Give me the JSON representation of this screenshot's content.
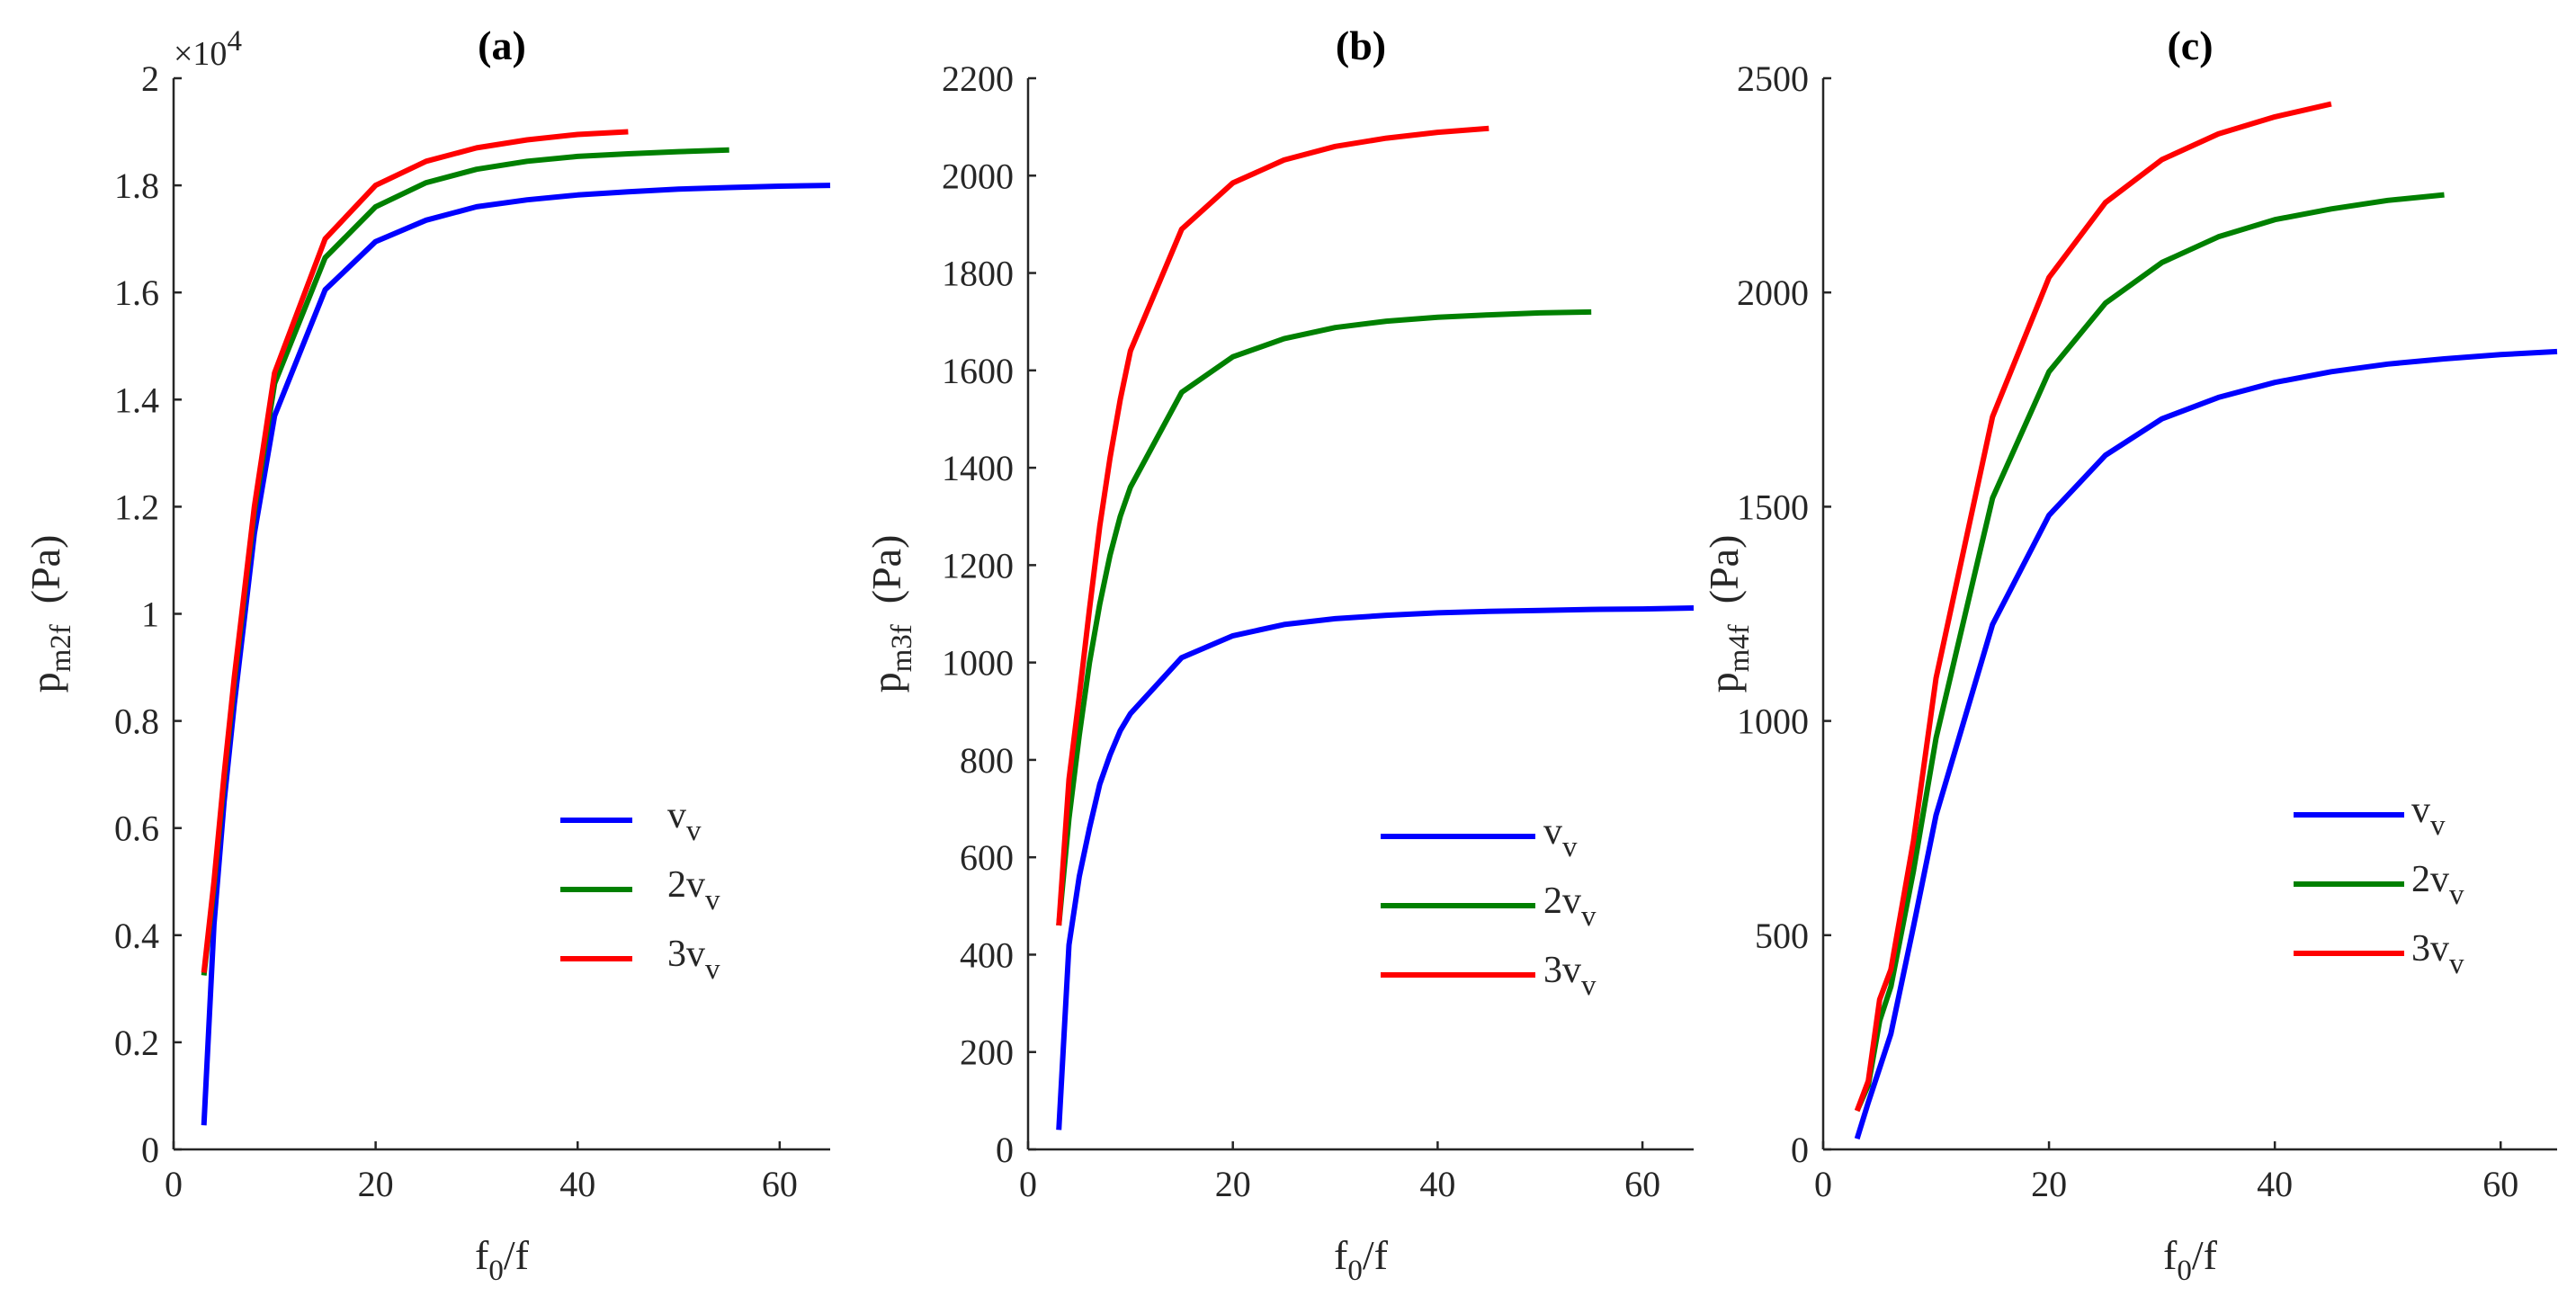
{
  "chart_data": [
    {
      "type": "line",
      "title": "(a)",
      "xlabel": "f0/f",
      "xlabel_main": "f",
      "xlabel_sub": "0",
      "xlabel_tail": "/f",
      "ylabel": "pm2f (Pa)",
      "ylabel_main": "p",
      "ylabel_sub": "m2f",
      "ylabel_unit": "(Pa)",
      "y_exponent_prefix": "×10",
      "y_exponent_power": "4",
      "xlim": [
        0,
        65
      ],
      "ylim": [
        0,
        20000
      ],
      "xticks": [
        0,
        20,
        40,
        60
      ],
      "xtick_labels": [
        "0",
        "20",
        "40",
        "60"
      ],
      "yticks": [
        0,
        2000,
        4000,
        6000,
        8000,
        10000,
        12000,
        14000,
        16000,
        18000,
        20000
      ],
      "ytick_labels": [
        "0",
        "0.2",
        "0.4",
        "0.6",
        "0.8",
        "1",
        "1.2",
        "1.4",
        "1.6",
        "1.8",
        "2"
      ],
      "legend_position": "right-middle",
      "series": [
        {
          "name": "vv",
          "label_main": "v",
          "label_sub": "v",
          "color": "#0000ff",
          "x": [
            3,
            4,
            5,
            6,
            8,
            10,
            15,
            20,
            25,
            30,
            35,
            40,
            45,
            50,
            55,
            60,
            65
          ],
          "y": [
            450,
            4200,
            6500,
            8300,
            11500,
            13700,
            16050,
            16950,
            17350,
            17600,
            17730,
            17820,
            17880,
            17930,
            17960,
            17985,
            18000
          ]
        },
        {
          "name": "2vv",
          "label_main": "2v",
          "label_sub": "v",
          "color": "#008000",
          "x": [
            3,
            4,
            5,
            6,
            8,
            10,
            15,
            20,
            25,
            30,
            35,
            40,
            45,
            50,
            55
          ],
          "y": [
            3250,
            4900,
            6900,
            8700,
            11900,
            14300,
            16650,
            17600,
            18050,
            18300,
            18450,
            18540,
            18590,
            18630,
            18660
          ]
        },
        {
          "name": "3vv",
          "label_main": "3v",
          "label_sub": "v",
          "color": "#ff0000",
          "x": [
            3,
            4,
            5,
            6,
            8,
            10,
            15,
            20,
            25,
            30,
            35,
            40,
            45
          ],
          "y": [
            3300,
            5000,
            7000,
            8800,
            12000,
            14500,
            17000,
            18000,
            18450,
            18700,
            18850,
            18950,
            19000
          ]
        }
      ]
    },
    {
      "type": "line",
      "title": "(b)",
      "xlabel": "f0/f",
      "xlabel_main": "f",
      "xlabel_sub": "0",
      "xlabel_tail": "/f",
      "ylabel": "pm3f (Pa)",
      "ylabel_main": "p",
      "ylabel_sub": "m3f",
      "ylabel_unit": "(Pa)",
      "xlim": [
        0,
        65
      ],
      "ylim": [
        0,
        2200
      ],
      "xticks": [
        0,
        20,
        40,
        60
      ],
      "xtick_labels": [
        "0",
        "20",
        "40",
        "60"
      ],
      "yticks": [
        0,
        200,
        400,
        600,
        800,
        1000,
        1200,
        1400,
        1600,
        1800,
        2000,
        2200
      ],
      "ytick_labels": [
        "0",
        "200",
        "400",
        "600",
        "800",
        "1000",
        "1200",
        "1400",
        "1600",
        "1800",
        "2000",
        "2200"
      ],
      "legend_position": "right-middle",
      "series": [
        {
          "name": "vv",
          "label_main": "v",
          "label_sub": "v",
          "color": "#0000ff",
          "x": [
            3,
            4,
            5,
            6,
            7,
            8,
            9,
            10,
            15,
            20,
            25,
            30,
            35,
            40,
            45,
            50,
            55,
            60,
            65
          ],
          "y": [
            40,
            420,
            560,
            660,
            750,
            810,
            860,
            895,
            1010,
            1055,
            1078,
            1090,
            1097,
            1102,
            1105,
            1107,
            1109,
            1110,
            1112
          ]
        },
        {
          "name": "2vv",
          "label_main": "2v",
          "label_sub": "v",
          "color": "#008000",
          "x": [
            3,
            4,
            5,
            6,
            7,
            8,
            9,
            10,
            15,
            20,
            25,
            30,
            35,
            40,
            45,
            50,
            55
          ],
          "y": [
            460,
            680,
            850,
            1000,
            1120,
            1220,
            1300,
            1360,
            1555,
            1628,
            1665,
            1688,
            1701,
            1709,
            1714,
            1718,
            1720
          ]
        },
        {
          "name": "3vv",
          "label_main": "3v",
          "label_sub": "v",
          "color": "#ff0000",
          "x": [
            3,
            4,
            5,
            6,
            7,
            8,
            9,
            10,
            15,
            20,
            25,
            30,
            35,
            40,
            45
          ],
          "y": [
            460,
            760,
            930,
            1110,
            1280,
            1420,
            1540,
            1640,
            1890,
            1985,
            2032,
            2060,
            2077,
            2089,
            2097
          ]
        }
      ]
    },
    {
      "type": "line",
      "title": "(c)",
      "xlabel": "f0/f",
      "xlabel_main": "f",
      "xlabel_sub": "0",
      "xlabel_tail": "/f",
      "ylabel": "pm4f (Pa)",
      "ylabel_main": "p",
      "ylabel_sub": "m4f",
      "ylabel_unit": "(Pa)",
      "xlim": [
        0,
        65
      ],
      "ylim": [
        0,
        2500
      ],
      "xticks": [
        0,
        20,
        40,
        60
      ],
      "xtick_labels": [
        "0",
        "20",
        "40",
        "60"
      ],
      "yticks": [
        0,
        500,
        1000,
        1500,
        2000,
        2500
      ],
      "ytick_labels": [
        "0",
        "500",
        "1000",
        "1500",
        "2000",
        "2500"
      ],
      "legend_position": "right-middle",
      "series": [
        {
          "name": "vv",
          "label_main": "v",
          "label_sub": "v",
          "color": "#0000ff",
          "x": [
            3,
            4,
            5,
            6,
            8,
            10,
            15,
            20,
            25,
            30,
            35,
            40,
            45,
            50,
            55,
            60,
            65
          ],
          "y": [
            25,
            110,
            190,
            270,
            520,
            780,
            1225,
            1480,
            1620,
            1705,
            1755,
            1790,
            1815,
            1833,
            1845,
            1855,
            1862
          ]
        },
        {
          "name": "2vv",
          "label_main": "2v",
          "label_sub": "v",
          "color": "#008000",
          "x": [
            3,
            4,
            5,
            6,
            8,
            10,
            15,
            20,
            25,
            30,
            35,
            40,
            45,
            50,
            55
          ],
          "y": [
            90,
            150,
            300,
            380,
            650,
            960,
            1520,
            1815,
            1975,
            2070,
            2130,
            2170,
            2195,
            2215,
            2228
          ]
        },
        {
          "name": "3vv",
          "label_main": "3v",
          "label_sub": "v",
          "color": "#ff0000",
          "x": [
            3,
            4,
            5,
            6,
            8,
            10,
            15,
            20,
            25,
            30,
            35,
            40,
            45
          ],
          "y": [
            90,
            160,
            350,
            420,
            720,
            1100,
            1710,
            2035,
            2210,
            2310,
            2370,
            2410,
            2440
          ]
        }
      ]
    }
  ]
}
